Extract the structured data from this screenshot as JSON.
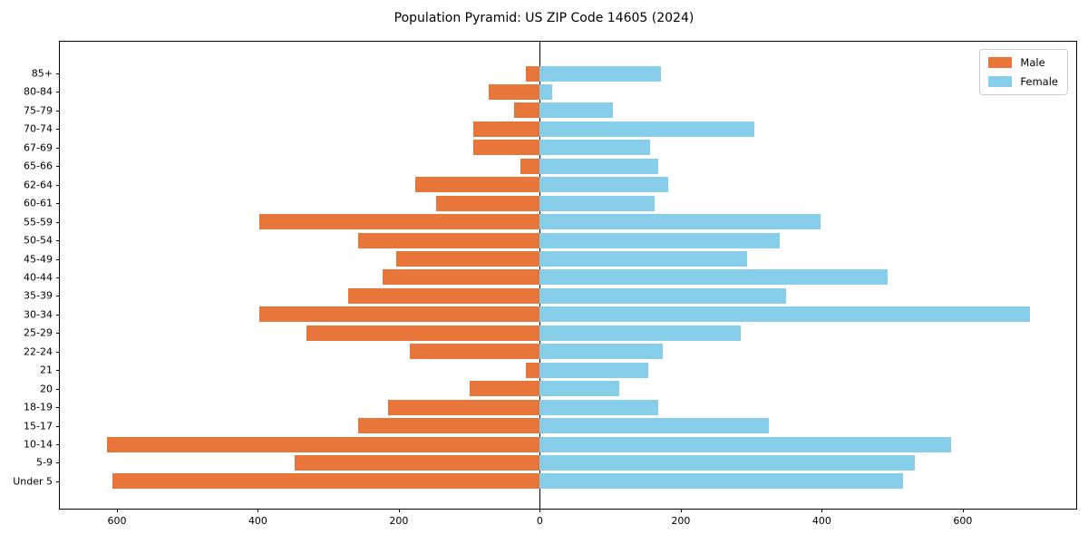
{
  "title": "Population Pyramid: US ZIP Code 14605 (2024)",
  "legend": {
    "male_label": "Male",
    "female_label": "Female"
  },
  "colors": {
    "male": "#E8763B",
    "female": "#87CEEB",
    "spine": "#000000",
    "zero_line": "#000000",
    "legend_border": "#cccccc",
    "background": "#ffffff"
  },
  "chart_data": {
    "type": "bar",
    "variant": "population-pyramid",
    "orientation": "horizontal",
    "title": "Population Pyramid: US ZIP Code 14605 (2024)",
    "categories": [
      "85+",
      "80-84",
      "75-79",
      "70-74",
      "67-69",
      "65-66",
      "62-64",
      "60-61",
      "55-59",
      "50-54",
      "45-49",
      "40-44",
      "35-39",
      "30-34",
      "25-29",
      "22-24",
      "21",
      "20",
      "18-19",
      "15-17",
      "10-14",
      "5-9",
      "Under 5"
    ],
    "series": [
      {
        "name": "Male",
        "side": "left",
        "values": [
          20,
          73,
          36,
          94,
          94,
          27,
          177,
          147,
          398,
          258,
          204,
          223,
          272,
          398,
          331,
          184,
          20,
          99,
          215,
          258,
          614,
          348,
          607
        ]
      },
      {
        "name": "Female",
        "side": "right",
        "values": [
          172,
          17,
          104,
          304,
          157,
          168,
          182,
          163,
          398,
          340,
          294,
          494,
          349,
          695,
          285,
          175,
          154,
          113,
          168,
          325,
          583,
          532,
          515
        ]
      }
    ],
    "xlim": [
      -681,
      761
    ],
    "xticks": [
      -600,
      -400,
      -200,
      0,
      200,
      400,
      600
    ],
    "xtick_labels": [
      "600",
      "400",
      "200",
      "0",
      "200",
      "400",
      "600"
    ],
    "xlabel": "",
    "ylabel": "",
    "grid": false,
    "legend_position": "upper right",
    "zero_axis_line": true
  }
}
